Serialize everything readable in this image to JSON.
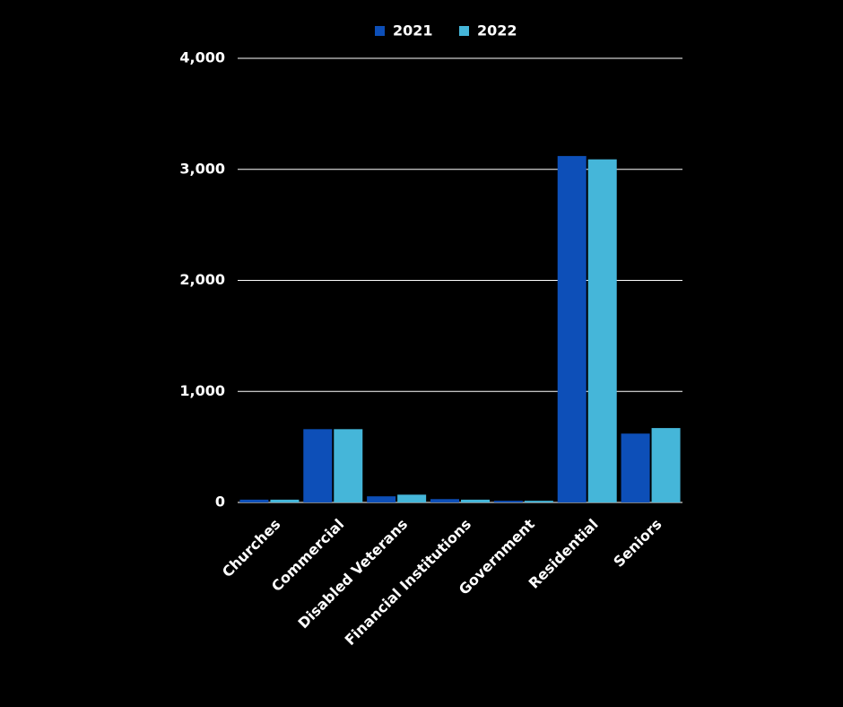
{
  "chart_data": {
    "type": "bar",
    "categories": [
      "Churches",
      "Commercial",
      "Disabled Veterans",
      "Financial Institutions",
      "Government",
      "Residential",
      "Seniors"
    ],
    "series": [
      {
        "name": "2021",
        "color": "#0d4fb8",
        "values": [
          25,
          660,
          55,
          30,
          15,
          3120,
          620
        ]
      },
      {
        "name": "2022",
        "color": "#45b6d9",
        "values": [
          25,
          660,
          70,
          25,
          15,
          3090,
          670
        ]
      }
    ],
    "ylim": [
      0,
      4000
    ],
    "yticks": [
      0,
      {
        "value": 1000,
        "label": "1,000"
      },
      {
        "value": 2000,
        "label": "2,000"
      },
      {
        "value": 3000,
        "label": "3,000"
      },
      {
        "value": 4000,
        "label": "4,000"
      }
    ],
    "grid": true,
    "legend": "top"
  }
}
